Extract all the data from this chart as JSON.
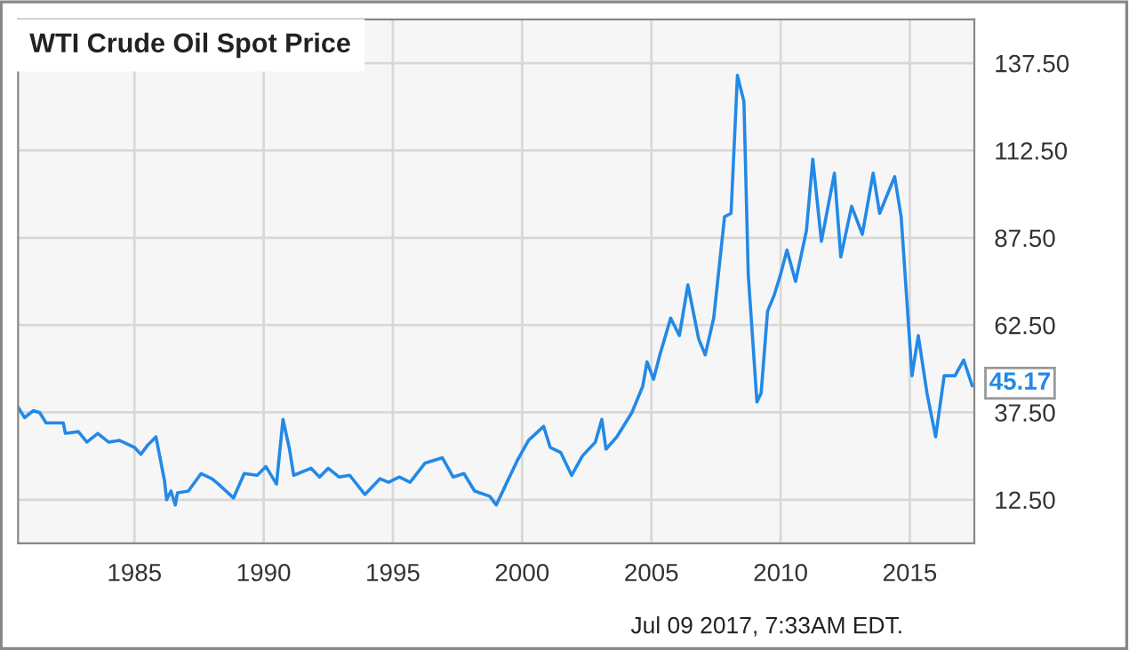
{
  "chart_data": {
    "type": "line",
    "title": "WTI Crude Oil Spot Price",
    "x": [
      "1980-07",
      "1980-10",
      "1981-02",
      "1981-05",
      "1981-08",
      "1982-04",
      "1982-05",
      "1982-11",
      "1983-03",
      "1983-08",
      "1984-01",
      "1984-06",
      "1985-01",
      "1985-04",
      "1985-07",
      "1985-11",
      "1986-03",
      "1986-04",
      "1986-06",
      "1986-08",
      "1986-09",
      "1987-02",
      "1987-08",
      "1988-01",
      "1988-04",
      "1988-11",
      "1989-04",
      "1989-10",
      "1990-02",
      "1990-07",
      "1990-10",
      "1991-01",
      "1991-03",
      "1991-11",
      "1992-03",
      "1992-07",
      "1992-12",
      "1993-05",
      "1993-12",
      "1994-07",
      "1994-11",
      "1995-04",
      "1995-09",
      "1996-04",
      "1996-12",
      "1997-05",
      "1997-10",
      "1998-03",
      "1998-10",
      "1999-01",
      "1999-06",
      "1999-11",
      "2000-04",
      "2000-11",
      "2001-02",
      "2001-07",
      "2001-12",
      "2002-05",
      "2002-11",
      "2003-02",
      "2003-04",
      "2003-09",
      "2004-04",
      "2004-09",
      "2004-11",
      "2005-02",
      "2005-05",
      "2005-10",
      "2006-02",
      "2006-06",
      "2006-11",
      "2007-02",
      "2007-06",
      "2007-11",
      "2008-02",
      "2008-05",
      "2008-08",
      "2008-10",
      "2009-02",
      "2009-04",
      "2009-07",
      "2009-10",
      "2010-01",
      "2010-04",
      "2010-08",
      "2011-01",
      "2011-04",
      "2011-08",
      "2012-02",
      "2012-05",
      "2012-10",
      "2013-03",
      "2013-08",
      "2013-11",
      "2014-06",
      "2014-09",
      "2015-02",
      "2015-05",
      "2015-09",
      "2016-01",
      "2016-05",
      "2016-10",
      "2017-02",
      "2017-06"
    ],
    "values": [
      39,
      36,
      38,
      37.5,
      34.5,
      34.5,
      31.5,
      32,
      29,
      31.5,
      29,
      29.5,
      27.5,
      25.5,
      28,
      30.5,
      18,
      12.5,
      15,
      11,
      14.5,
      15,
      20,
      18.5,
      17,
      13,
      20,
      19.5,
      22,
      17,
      35.5,
      27,
      19.5,
      21.5,
      19,
      21.5,
      19,
      19.5,
      14,
      18.5,
      17.5,
      19,
      17.5,
      23,
      24.5,
      19,
      20,
      15,
      13.5,
      11,
      17.5,
      24,
      29.5,
      33.5,
      27.5,
      26,
      19.5,
      25,
      29,
      35.5,
      27,
      30.5,
      37.5,
      45,
      52,
      47,
      54,
      64.5,
      59.5,
      74,
      58.5,
      54,
      64.5,
      93.5,
      94.5,
      134,
      126.5,
      77,
      40.5,
      43,
      66.5,
      71,
      77,
      84,
      75,
      89.5,
      110,
      86.5,
      106,
      82,
      96.5,
      88.5,
      106,
      94.5,
      105,
      93.5,
      48,
      59.5,
      43,
      30.5,
      48,
      48,
      52.5,
      45.17
    ],
    "value_labels": [
      null,
      null,
      null,
      null,
      null,
      null,
      null,
      null,
      null,
      null,
      null,
      null,
      null,
      null,
      null,
      null,
      null,
      null,
      null,
      null,
      null,
      null,
      null,
      null,
      null,
      null,
      null,
      null,
      null,
      null,
      null,
      null,
      null,
      null,
      null,
      null,
      null,
      null,
      null,
      null,
      null,
      null,
      null,
      null,
      null,
      null,
      null,
      null,
      null,
      null,
      null,
      null,
      null,
      null,
      null,
      null,
      null,
      null,
      null,
      null,
      null,
      null,
      null,
      null,
      null,
      null,
      null,
      null,
      null,
      null,
      null,
      null,
      null,
      null,
      null,
      null,
      null,
      null,
      null,
      null,
      null,
      null,
      null,
      null,
      null,
      null,
      null,
      null,
      null,
      null,
      null,
      null,
      null,
      null,
      null,
      null,
      null,
      null,
      null,
      null,
      null,
      null,
      null,
      "45.17"
    ],
    "color": "#2389e6",
    "xlim": [
      "1980-07",
      "2017-07"
    ],
    "xticks": [
      {
        "value": "1985",
        "label": "1985"
      },
      {
        "value": "1990",
        "label": "1990"
      },
      {
        "value": "1995",
        "label": "1995"
      },
      {
        "value": "2000",
        "label": "2000"
      },
      {
        "value": "2005",
        "label": "2005"
      },
      {
        "value": "2010",
        "label": "2010"
      },
      {
        "value": "2015",
        "label": "2015"
      }
    ],
    "ylim": [
      0,
      150
    ],
    "yticks": [
      {
        "value": 12.5,
        "label": "12.50"
      },
      {
        "value": 37.5,
        "label": "37.50"
      },
      {
        "value": 62.5,
        "label": "62.50"
      },
      {
        "value": 87.5,
        "label": "87.50"
      },
      {
        "value": 112.5,
        "label": "112.50"
      },
      {
        "value": 137.5,
        "label": "137.50"
      }
    ],
    "grid": true,
    "annotations": [
      "Jul 09 2017, 7:33AM EDT."
    ]
  }
}
